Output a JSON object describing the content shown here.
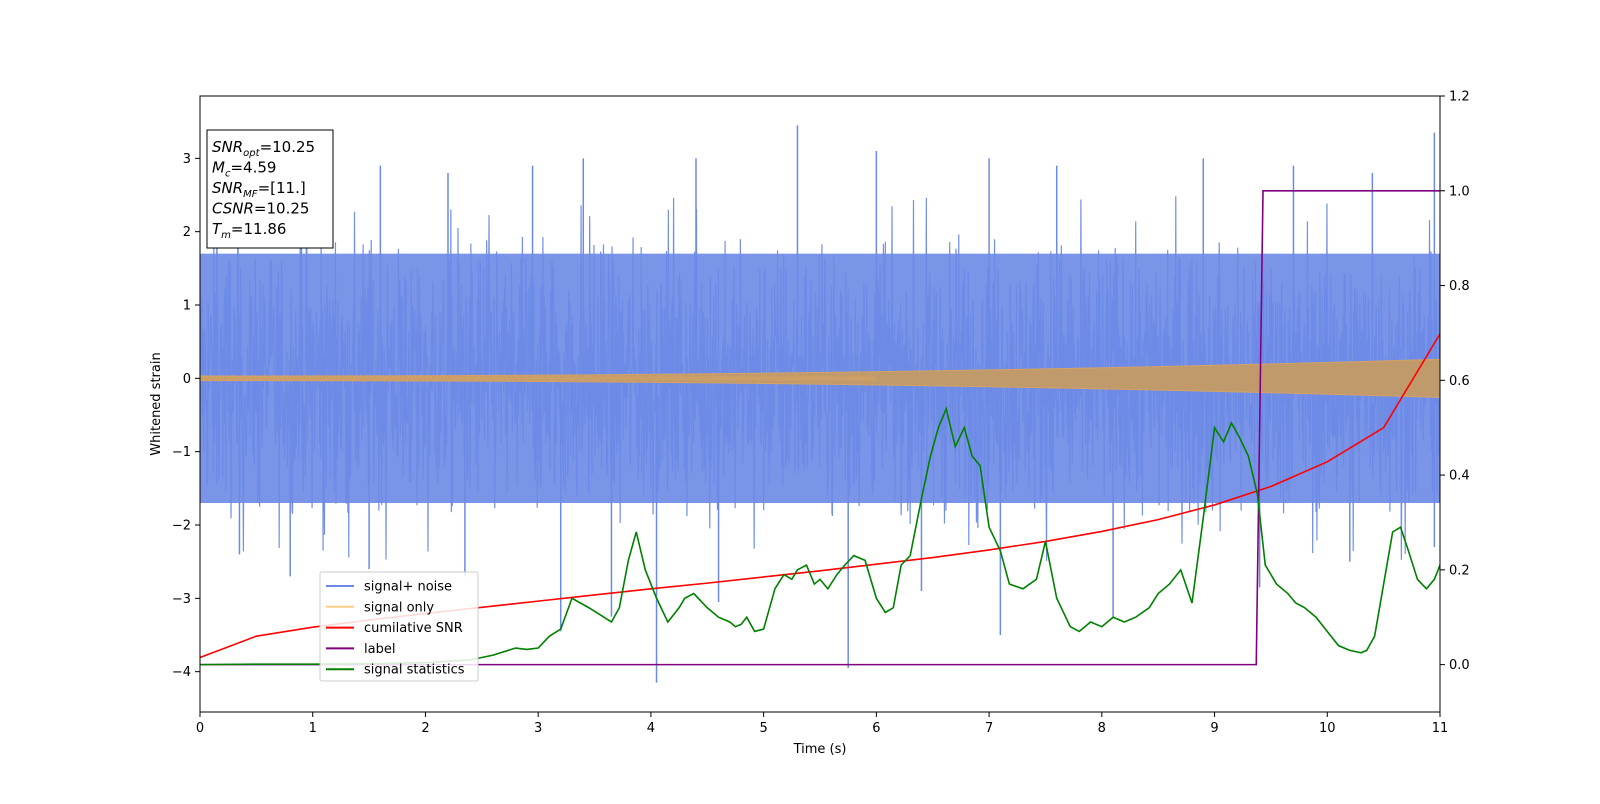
{
  "chart_data": {
    "type": "line",
    "title": "",
    "xlabel": "Time (s)",
    "ylabel": "Whitened strain",
    "xlim": [
      0,
      11
    ],
    "ylim": [
      -4.55,
      3.85
    ],
    "y2lim": [
      -0.1,
      1.2
    ],
    "xticks": [
      0,
      1,
      2,
      3,
      4,
      5,
      6,
      7,
      8,
      9,
      10,
      11
    ],
    "yticks": [
      -4,
      -3,
      -2,
      -1,
      0,
      1,
      2,
      3
    ],
    "y2ticks": [
      "0.0",
      "0.2",
      "0.4",
      "0.6",
      "0.8",
      "1.0",
      "1.2"
    ],
    "grid": false,
    "legend_position": "lower-left",
    "annotation": {
      "lines": [
        {
          "main": "SNR",
          "sub": "opt",
          "value": "=10.25"
        },
        {
          "main": "M",
          "sub": "c",
          "value": "=4.59"
        },
        {
          "main": "SNR",
          "sub": "MF",
          "value": "=[11.]"
        },
        {
          "main": "CSNR",
          "sub": "",
          "value": "=10.25"
        },
        {
          "main": "T",
          "sub": "m",
          "value": "=11.86"
        }
      ]
    },
    "series": [
      {
        "name": "signal+ noise",
        "color": "#6b8ae6",
        "axis": "left",
        "kind": "noise",
        "envelope": {
          "x": [
            0,
            11
          ],
          "low": -1.7,
          "high": 1.7
        },
        "peaks_high": [
          {
            "x": 0.15,
            "y": 2.6
          },
          {
            "x": 0.9,
            "y": 2.7
          },
          {
            "x": 1.6,
            "y": 2.9
          },
          {
            "x": 2.2,
            "y": 2.8
          },
          {
            "x": 2.95,
            "y": 2.9
          },
          {
            "x": 3.4,
            "y": 3.0
          },
          {
            "x": 4.4,
            "y": 3.0
          },
          {
            "x": 5.3,
            "y": 3.45
          },
          {
            "x": 6.0,
            "y": 3.1
          },
          {
            "x": 7.0,
            "y": 3.0
          },
          {
            "x": 7.6,
            "y": 2.9
          },
          {
            "x": 8.9,
            "y": 3.0
          },
          {
            "x": 9.7,
            "y": 2.9
          },
          {
            "x": 10.4,
            "y": 2.8
          },
          {
            "x": 10.95,
            "y": 3.35
          }
        ],
        "peaks_low": [
          {
            "x": 0.35,
            "y": -2.4
          },
          {
            "x": 0.8,
            "y": -2.7
          },
          {
            "x": 1.5,
            "y": -2.6
          },
          {
            "x": 2.35,
            "y": -2.7
          },
          {
            "x": 3.2,
            "y": -3.45
          },
          {
            "x": 3.65,
            "y": -3.25
          },
          {
            "x": 4.05,
            "y": -4.15
          },
          {
            "x": 4.6,
            "y": -3.05
          },
          {
            "x": 5.75,
            "y": -3.95
          },
          {
            "x": 6.4,
            "y": -2.9
          },
          {
            "x": 7.1,
            "y": -3.5
          },
          {
            "x": 8.1,
            "y": -3.25
          },
          {
            "x": 9.4,
            "y": -2.85
          },
          {
            "x": 10.2,
            "y": -2.5
          },
          {
            "x": 10.95,
            "y": -2.3
          }
        ]
      },
      {
        "name": "signal only",
        "color": "#f5c46e",
        "axis": "left",
        "kind": "chirp",
        "amplitude_start": 0.03,
        "amplitude_end": 0.26
      },
      {
        "name": "cumilative SNR",
        "color": "#ff0000",
        "axis": "right",
        "x": [
          0,
          0.5,
          1,
          1.5,
          2,
          2.5,
          3,
          3.5,
          4,
          4.5,
          5,
          5.5,
          6,
          6.5,
          7,
          7.5,
          8,
          8.5,
          9,
          9.5,
          10,
          10.5,
          11
        ],
        "y": [
          0.015,
          0.06,
          0.079,
          0.094,
          0.108,
          0.121,
          0.134,
          0.147,
          0.16,
          0.172,
          0.185,
          0.198,
          0.212,
          0.226,
          0.242,
          0.26,
          0.281,
          0.306,
          0.337,
          0.376,
          0.428,
          0.5,
          0.698
        ]
      },
      {
        "name": "label",
        "color": "#800080",
        "axis": "right",
        "x": [
          0,
          9.37,
          9.43,
          11
        ],
        "y": [
          0,
          0,
          1,
          1
        ]
      },
      {
        "name": "signal statistics",
        "color": "#008000",
        "axis": "right",
        "x": [
          0,
          0.5,
          1,
          1.5,
          2,
          2.4,
          2.6,
          2.8,
          2.9,
          3.0,
          3.1,
          3.2,
          3.3,
          3.45,
          3.55,
          3.65,
          3.72,
          3.8,
          3.87,
          3.95,
          4.05,
          4.15,
          4.25,
          4.3,
          4.38,
          4.5,
          4.6,
          4.7,
          4.75,
          4.8,
          4.85,
          4.92,
          5.0,
          5.1,
          5.18,
          5.25,
          5.3,
          5.38,
          5.45,
          5.5,
          5.57,
          5.65,
          5.72,
          5.8,
          5.9,
          6.0,
          6.08,
          6.15,
          6.22,
          6.3,
          6.4,
          6.48,
          6.55,
          6.62,
          6.7,
          6.78,
          6.85,
          6.92,
          7.0,
          7.1,
          7.18,
          7.3,
          7.42,
          7.5,
          7.6,
          7.72,
          7.8,
          7.9,
          8.0,
          8.1,
          8.2,
          8.3,
          8.42,
          8.5,
          8.6,
          8.7,
          8.8,
          8.9,
          9.0,
          9.08,
          9.15,
          9.22,
          9.3,
          9.38,
          9.45,
          9.55,
          9.65,
          9.72,
          9.8,
          9.9,
          10.0,
          10.1,
          10.2,
          10.3,
          10.35,
          10.42,
          10.5,
          10.58,
          10.65,
          10.72,
          10.8,
          10.88,
          10.95,
          11.0
        ],
        "y": [
          0,
          0.001,
          0.001,
          0.002,
          0.004,
          0.01,
          0.02,
          0.035,
          0.032,
          0.035,
          0.06,
          0.075,
          0.14,
          0.12,
          0.105,
          0.09,
          0.12,
          0.22,
          0.28,
          0.2,
          0.14,
          0.09,
          0.12,
          0.14,
          0.15,
          0.12,
          0.1,
          0.09,
          0.08,
          0.085,
          0.1,
          0.07,
          0.075,
          0.16,
          0.19,
          0.18,
          0.2,
          0.21,
          0.17,
          0.18,
          0.16,
          0.19,
          0.21,
          0.23,
          0.22,
          0.14,
          0.11,
          0.12,
          0.21,
          0.23,
          0.35,
          0.44,
          0.5,
          0.54,
          0.46,
          0.5,
          0.44,
          0.42,
          0.29,
          0.24,
          0.17,
          0.16,
          0.18,
          0.26,
          0.14,
          0.08,
          0.07,
          0.09,
          0.08,
          0.1,
          0.09,
          0.1,
          0.12,
          0.15,
          0.17,
          0.2,
          0.13,
          0.31,
          0.5,
          0.47,
          0.51,
          0.48,
          0.44,
          0.36,
          0.21,
          0.17,
          0.15,
          0.13,
          0.12,
          0.1,
          0.07,
          0.04,
          0.03,
          0.025,
          0.03,
          0.06,
          0.17,
          0.28,
          0.29,
          0.24,
          0.18,
          0.16,
          0.18,
          0.21
        ]
      }
    ]
  }
}
